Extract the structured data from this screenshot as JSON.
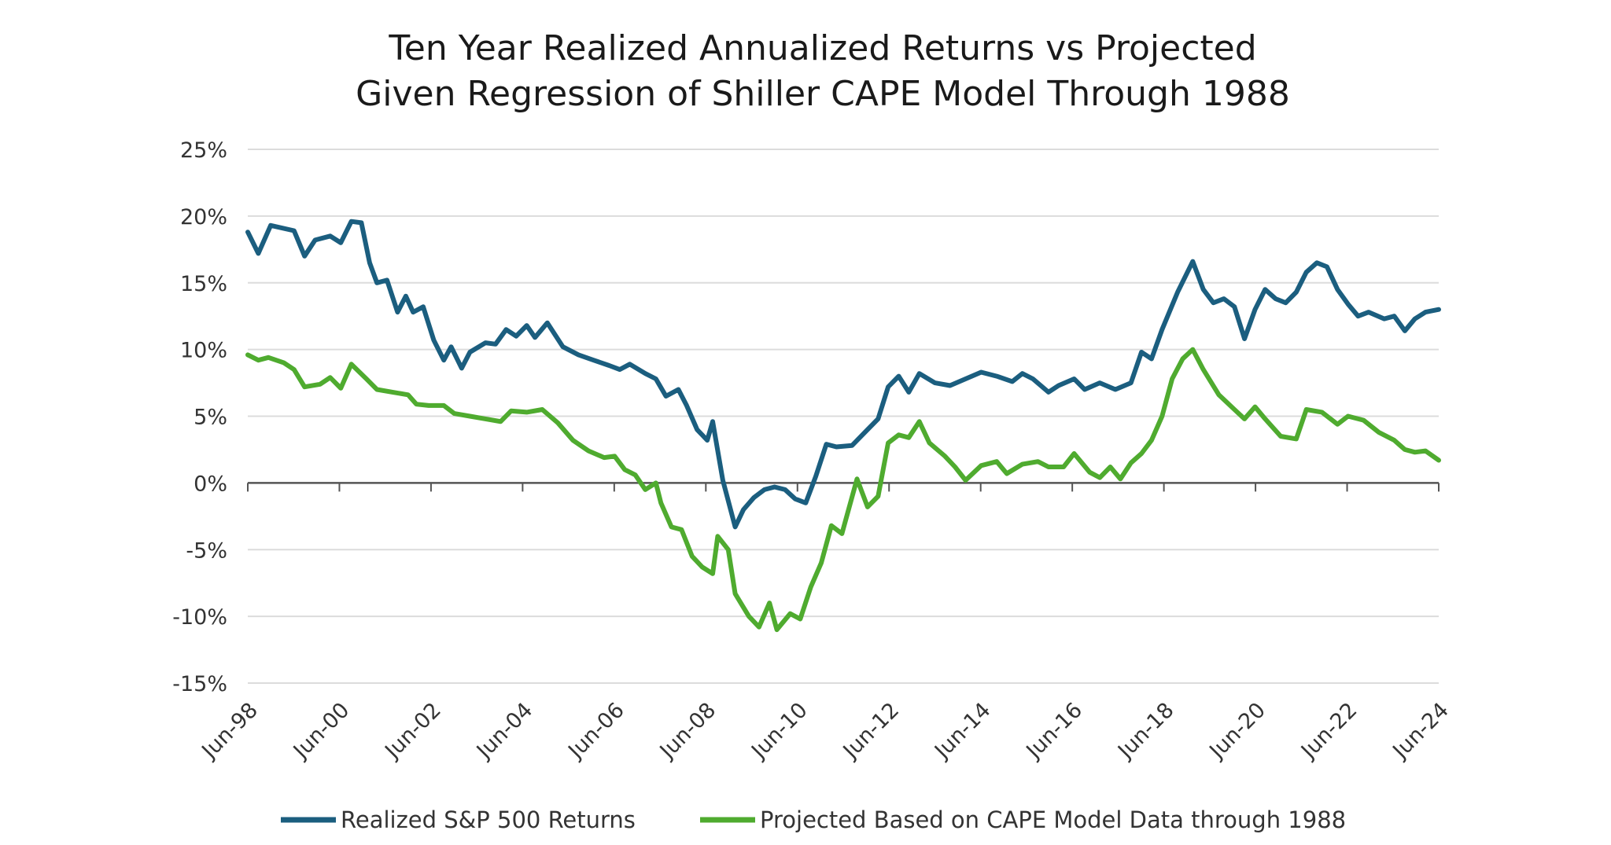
{
  "chart_data": {
    "type": "line",
    "title_lines": [
      "Ten Year Realized Annualized Returns vs Projected",
      "Given Regression of Shiller CAPE Model Through 1988"
    ],
    "xlabel": "",
    "ylabel": "",
    "xlim": [
      1998.5,
      2024.5
    ],
    "ylim": [
      -15,
      25
    ],
    "y_ticks": [
      25,
      20,
      15,
      10,
      5,
      0,
      -5,
      -10,
      -15
    ],
    "y_tick_labels": [
      "25%",
      "20%",
      "15%",
      "10%",
      "5%",
      "0%",
      "-5%",
      "-10%",
      "-15%"
    ],
    "x_ticks": [
      1998.5,
      2000.5,
      2002.5,
      2004.5,
      2006.5,
      2008.5,
      2010.5,
      2012.5,
      2014.5,
      2016.5,
      2018.5,
      2020.5,
      2022.5,
      2024.5
    ],
    "x_tick_labels": [
      "Jun-98",
      "Jun-00",
      "Jun-02",
      "Jun-04",
      "Jun-06",
      "Jun-08",
      "Jun-10",
      "Jun-12",
      "Jun-14",
      "Jun-16",
      "Jun-18",
      "Jun-20",
      "Jun-22",
      "Jun-24"
    ],
    "grid": true,
    "legend_position": "bottom",
    "series": [
      {
        "name": "Realized S&P 500 Returns",
        "color": "#1b5e7f",
        "x": [
          1998.5,
          1998.73,
          1999.0,
          1999.51,
          1999.74,
          1999.97,
          2000.3,
          2000.53,
          2000.76,
          2000.98,
          2001.16,
          2001.32,
          2001.54,
          2001.77,
          2001.95,
          2002.11,
          2002.33,
          2002.56,
          2002.78,
          2002.94,
          2003.17,
          2003.35,
          2003.69,
          2003.91,
          2004.14,
          2004.36,
          2004.59,
          2004.77,
          2005.04,
          2005.38,
          2005.72,
          2006.05,
          2006.39,
          2006.62,
          2006.84,
          2007.18,
          2007.41,
          2007.63,
          2007.9,
          2008.08,
          2008.31,
          2008.53,
          2008.65,
          2008.87,
          2009.14,
          2009.32,
          2009.55,
          2009.78,
          2010.0,
          2010.23,
          2010.45,
          2010.68,
          2010.9,
          2011.13,
          2011.35,
          2011.69,
          2012.03,
          2012.26,
          2012.48,
          2012.71,
          2012.93,
          2013.16,
          2013.5,
          2013.83,
          2014.17,
          2014.51,
          2014.85,
          2015.19,
          2015.41,
          2015.64,
          2015.98,
          2016.2,
          2016.54,
          2016.77,
          2017.1,
          2017.44,
          2017.78,
          2018.01,
          2018.23,
          2018.46,
          2018.8,
          2019.13,
          2019.36,
          2019.58,
          2019.81,
          2020.04,
          2020.26,
          2020.49,
          2020.71,
          2020.94,
          2021.16,
          2021.39,
          2021.61,
          2021.84,
          2022.06,
          2022.29,
          2022.52,
          2022.74,
          2022.97,
          2023.31,
          2023.53,
          2023.76,
          2023.98,
          2024.21,
          2024.5
        ],
        "y": [
          18.8,
          17.2,
          19.3,
          18.9,
          17.0,
          18.2,
          18.5,
          18.0,
          19.6,
          19.5,
          16.5,
          15.0,
          15.2,
          12.8,
          14.0,
          12.8,
          13.2,
          10.7,
          9.2,
          10.2,
          8.6,
          9.8,
          10.5,
          10.4,
          11.5,
          11.0,
          11.8,
          10.9,
          12.0,
          10.2,
          9.6,
          9.2,
          8.8,
          8.5,
          8.9,
          8.2,
          7.8,
          6.5,
          7.0,
          5.8,
          4.0,
          3.2,
          4.6,
          0.2,
          -3.3,
          -2.0,
          -1.1,
          -0.5,
          -0.3,
          -0.5,
          -1.2,
          -1.5,
          0.5,
          2.9,
          2.7,
          2.8,
          4.0,
          4.8,
          7.2,
          8.0,
          6.8,
          8.2,
          7.5,
          7.3,
          7.8,
          8.3,
          8.0,
          7.6,
          8.2,
          7.8,
          6.8,
          7.3,
          7.8,
          7.0,
          7.5,
          7.0,
          7.5,
          9.8,
          9.3,
          11.5,
          14.3,
          16.6,
          14.5,
          13.5,
          13.8,
          13.2,
          10.8,
          13.0,
          14.5,
          13.8,
          13.5,
          14.3,
          15.8,
          16.5,
          16.2,
          14.5,
          13.4,
          12.5,
          12.8,
          12.3,
          12.5,
          11.4,
          12.3,
          12.8,
          13.0
        ]
      },
      {
        "name": "Projected Based on CAPE Model Data through 1988",
        "color": "#4fab2f",
        "x": [
          1998.5,
          1998.73,
          1998.95,
          1999.29,
          1999.51,
          1999.74,
          2000.08,
          2000.3,
          2000.53,
          2000.76,
          2001.09,
          2001.32,
          2001.66,
          2002.0,
          2002.18,
          2002.45,
          2002.78,
          2003.01,
          2003.35,
          2003.69,
          2004.02,
          2004.25,
          2004.59,
          2004.93,
          2005.27,
          2005.6,
          2005.94,
          2006.28,
          2006.51,
          2006.73,
          2006.96,
          2007.18,
          2007.41,
          2007.52,
          2007.75,
          2007.97,
          2008.2,
          2008.42,
          2008.65,
          2008.76,
          2008.99,
          2009.14,
          2009.44,
          2009.66,
          2009.89,
          2010.05,
          2010.34,
          2010.56,
          2010.79,
          2011.02,
          2011.24,
          2011.47,
          2011.8,
          2012.03,
          2012.26,
          2012.48,
          2012.71,
          2012.93,
          2013.16,
          2013.38,
          2013.72,
          2013.94,
          2014.17,
          2014.51,
          2014.85,
          2015.07,
          2015.41,
          2015.75,
          2015.98,
          2016.31,
          2016.54,
          2016.88,
          2017.1,
          2017.33,
          2017.55,
          2017.78,
          2018.01,
          2018.23,
          2018.46,
          2018.68,
          2018.91,
          2019.13,
          2019.36,
          2019.7,
          2020.04,
          2020.26,
          2020.49,
          2020.71,
          2021.05,
          2021.39,
          2021.61,
          2021.95,
          2022.29,
          2022.52,
          2022.86,
          2023.19,
          2023.53,
          2023.76,
          2023.98,
          2024.21,
          2024.5
        ],
        "y": [
          9.6,
          9.2,
          9.4,
          9.0,
          8.5,
          7.2,
          7.4,
          7.9,
          7.1,
          8.9,
          7.8,
          7.0,
          6.8,
          6.6,
          5.9,
          5.8,
          5.8,
          5.2,
          5.0,
          4.8,
          4.6,
          5.4,
          5.3,
          5.5,
          4.5,
          3.2,
          2.4,
          1.9,
          2.0,
          1.0,
          0.6,
          -0.5,
          0.0,
          -1.5,
          -3.3,
          -3.5,
          -5.5,
          -6.3,
          -6.8,
          -4.0,
          -5.0,
          -8.3,
          -10.0,
          -10.8,
          -9.0,
          -11.0,
          -9.8,
          -10.2,
          -7.8,
          -6.0,
          -3.2,
          -3.8,
          0.3,
          -1.8,
          -1.0,
          3.0,
          3.6,
          3.4,
          4.6,
          3.0,
          2.0,
          1.2,
          0.2,
          1.3,
          1.6,
          0.7,
          1.4,
          1.6,
          1.2,
          1.2,
          2.2,
          0.8,
          0.4,
          1.2,
          0.3,
          1.5,
          2.2,
          3.2,
          5.0,
          7.8,
          9.3,
          10.0,
          8.5,
          6.6,
          5.5,
          4.8,
          5.7,
          4.8,
          3.5,
          3.3,
          5.5,
          5.3,
          4.4,
          5.0,
          4.7,
          3.8,
          3.2,
          2.5,
          2.3,
          2.4,
          1.7
        ]
      }
    ]
  }
}
